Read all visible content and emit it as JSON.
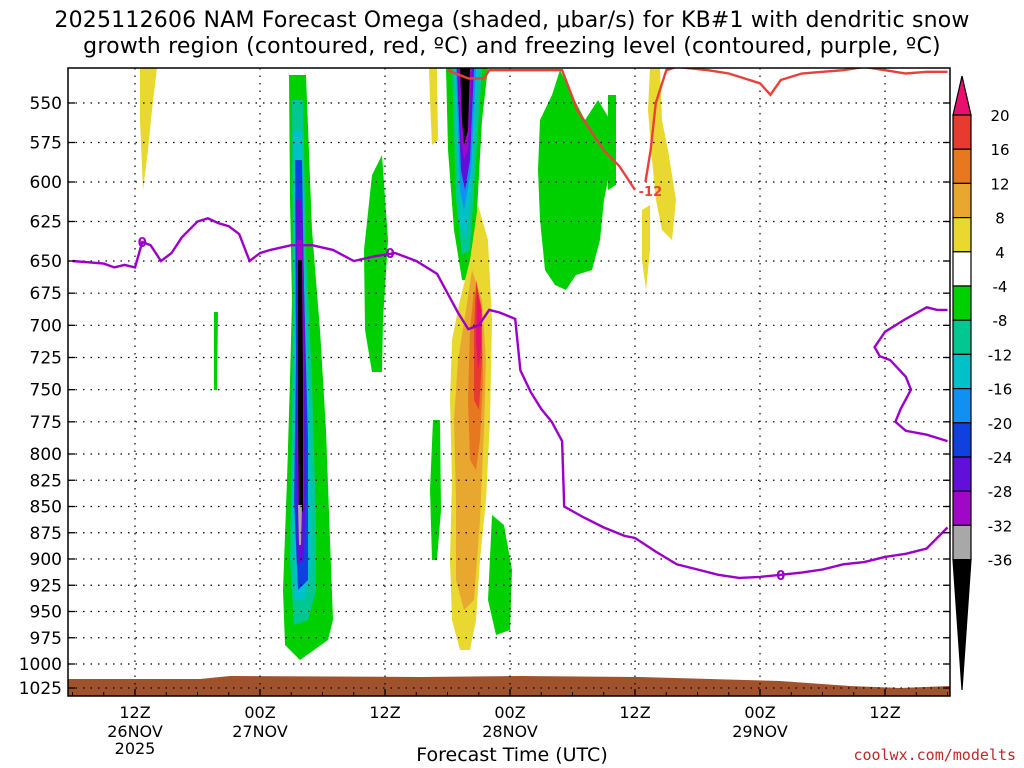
{
  "title_line1": "2025112606 NAM Forecast Omega (shaded, μbar/s) for KB#1 with dendritic snow",
  "title_line2": "growth region (contoured, red, ºC) and freezing level (contoured, purple, ºC)",
  "watermark": "coolwx.com/modelts",
  "chart_data": {
    "type": "heatmap",
    "title": "2025112606 NAM Forecast Omega (shaded, μbar/s) for KB#1 with dendritic snow growth region (contoured, red, ºC) and freezing level (contoured, purple, ºC)",
    "xlabel": "Forecast Time (UTC)",
    "ylabel": "",
    "x_ticks": [
      {
        "hour": 12,
        "label": "12Z",
        "sub": [
          "26NOV",
          "2025"
        ]
      },
      {
        "hour": 24,
        "label": "00Z",
        "sub": [
          "27NOV"
        ]
      },
      {
        "hour": 36,
        "label": "12Z",
        "sub": []
      },
      {
        "hour": 48,
        "label": "00Z",
        "sub": [
          "28NOV"
        ]
      },
      {
        "hour": 60,
        "label": "12Z",
        "sub": []
      },
      {
        "hour": 72,
        "label": "00Z",
        "sub": [
          "29NOV"
        ]
      },
      {
        "hour": 84,
        "label": "12Z",
        "sub": []
      }
    ],
    "x_hours_note": "hours after 2025112606",
    "xlim": [
      6,
      90
    ],
    "ylim": [
      1035,
      525
    ],
    "y_ticks": [
      550,
      575,
      600,
      625,
      650,
      675,
      700,
      725,
      750,
      775,
      800,
      825,
      850,
      875,
      900,
      925,
      950,
      975,
      1000,
      1025
    ],
    "colorbar": {
      "labels": [
        "20",
        "16",
        "12",
        "8",
        "4",
        "-4",
        "-8",
        "-12",
        "-16",
        "-20",
        "-24",
        "-28",
        "-32",
        "-36"
      ],
      "colors": [
        "#e8106e",
        "#e83a30",
        "#e87820",
        "#e8a830",
        "#e8d830",
        "#ffffff",
        "#00d000",
        "#00c890",
        "#00c0c8",
        "#1090f0",
        "#1040e0",
        "#6010d8",
        "#a008c8",
        "#a8a8a8",
        "#000000"
      ]
    },
    "shaded_features": [
      {
        "name": "upward-motion-core-27nov",
        "hour_center": 27.5,
        "p_top": 530,
        "p_bottom": 990,
        "min_value": -36
      },
      {
        "name": "upward-motion-core-27nov-pm",
        "hour_center": 43.5,
        "p_top": 530,
        "p_bottom": 670,
        "min_value": -36
      },
      {
        "name": "downward-motion-27nov-pm",
        "hour_center": 45,
        "p_top": 630,
        "p_bottom": 980,
        "max_value": 20
      },
      {
        "name": "weak-upward-28nov",
        "hour_center": 54.5,
        "p_top": 530,
        "p_bottom": 680,
        "min_value": -8
      }
    ],
    "contours": [
      {
        "name": "freezing-level",
        "color": "#9b00c8",
        "label": "0",
        "points": [
          [
            6,
            650
          ],
          [
            9,
            652
          ],
          [
            10,
            655
          ],
          [
            11,
            653
          ],
          [
            12,
            655
          ],
          [
            12.7,
            638
          ],
          [
            13.5,
            640
          ],
          [
            14.5,
            650
          ],
          [
            15.5,
            645
          ],
          [
            16.5,
            635
          ],
          [
            18,
            625
          ],
          [
            19,
            623
          ],
          [
            20,
            626
          ],
          [
            21,
            628
          ],
          [
            22,
            633
          ],
          [
            23,
            650
          ],
          [
            24,
            645
          ],
          [
            25,
            643
          ],
          [
            27,
            640
          ],
          [
            29,
            640
          ],
          [
            31,
            643
          ],
          [
            33,
            650
          ],
          [
            35,
            647
          ],
          [
            37,
            645
          ],
          [
            39,
            650
          ],
          [
            41,
            660
          ],
          [
            42,
            675
          ],
          [
            43,
            690
          ],
          [
            44,
            703
          ],
          [
            45,
            700
          ],
          [
            46,
            688
          ],
          [
            47,
            690
          ],
          [
            48.5,
            695
          ],
          [
            49,
            735
          ],
          [
            50,
            752
          ],
          [
            51,
            765
          ],
          [
            52,
            775
          ],
          [
            53,
            790
          ],
          [
            53.2,
            850
          ],
          [
            55,
            860
          ],
          [
            57,
            870
          ],
          [
            59,
            878
          ],
          [
            60,
            880
          ],
          [
            62,
            893
          ],
          [
            64,
            905
          ],
          [
            66,
            910
          ],
          [
            68,
            915
          ],
          [
            70,
            918
          ],
          [
            72,
            917
          ],
          [
            74,
            915
          ],
          [
            76,
            913
          ],
          [
            78,
            910
          ],
          [
            80,
            905
          ],
          [
            82,
            903
          ],
          [
            84,
            898
          ],
          [
            86,
            895
          ],
          [
            88,
            890
          ],
          [
            89,
            880
          ],
          [
            90,
            870
          ]
        ]
      },
      {
        "name": "freezing-level-east",
        "color": "#9b00c8",
        "label": "",
        "points": [
          [
            90,
            688
          ],
          [
            89,
            688
          ],
          [
            88,
            686
          ],
          [
            86,
            695
          ],
          [
            84,
            705
          ],
          [
            83,
            717
          ],
          [
            83.5,
            724
          ],
          [
            84.5,
            727
          ],
          [
            86,
            740
          ],
          [
            86.5,
            750
          ],
          [
            85.5,
            765
          ],
          [
            85,
            775
          ],
          [
            86,
            782
          ],
          [
            88,
            785
          ],
          [
            90,
            790
          ]
        ]
      },
      {
        "name": "dgz-minus12",
        "color": "#e8403a",
        "label": "-12",
        "points": [
          [
            42,
            530
          ],
          [
            44,
            535
          ],
          [
            45.5,
            535
          ],
          [
            46,
            530
          ],
          [
            53,
            530
          ],
          [
            54.5,
            555
          ],
          [
            56,
            570
          ],
          [
            57,
            580
          ],
          [
            58.5,
            590
          ],
          [
            60,
            605
          ]
        ]
      },
      {
        "name": "dgz-minus12-east",
        "color": "#e8403a",
        "label": "",
        "points": [
          [
            61,
            600
          ],
          [
            61.5,
            580
          ],
          [
            62,
            550
          ],
          [
            63,
            530
          ],
          [
            64,
            528
          ],
          [
            67,
            530
          ],
          [
            69,
            532
          ],
          [
            70.5,
            535
          ],
          [
            72,
            538
          ],
          [
            73,
            545
          ],
          [
            74,
            536
          ],
          [
            76,
            532
          ],
          [
            78,
            531
          ],
          [
            80,
            530
          ],
          [
            82,
            528
          ],
          [
            84,
            530
          ],
          [
            86,
            532
          ],
          [
            88,
            531
          ],
          [
            90,
            531
          ]
        ]
      }
    ]
  }
}
